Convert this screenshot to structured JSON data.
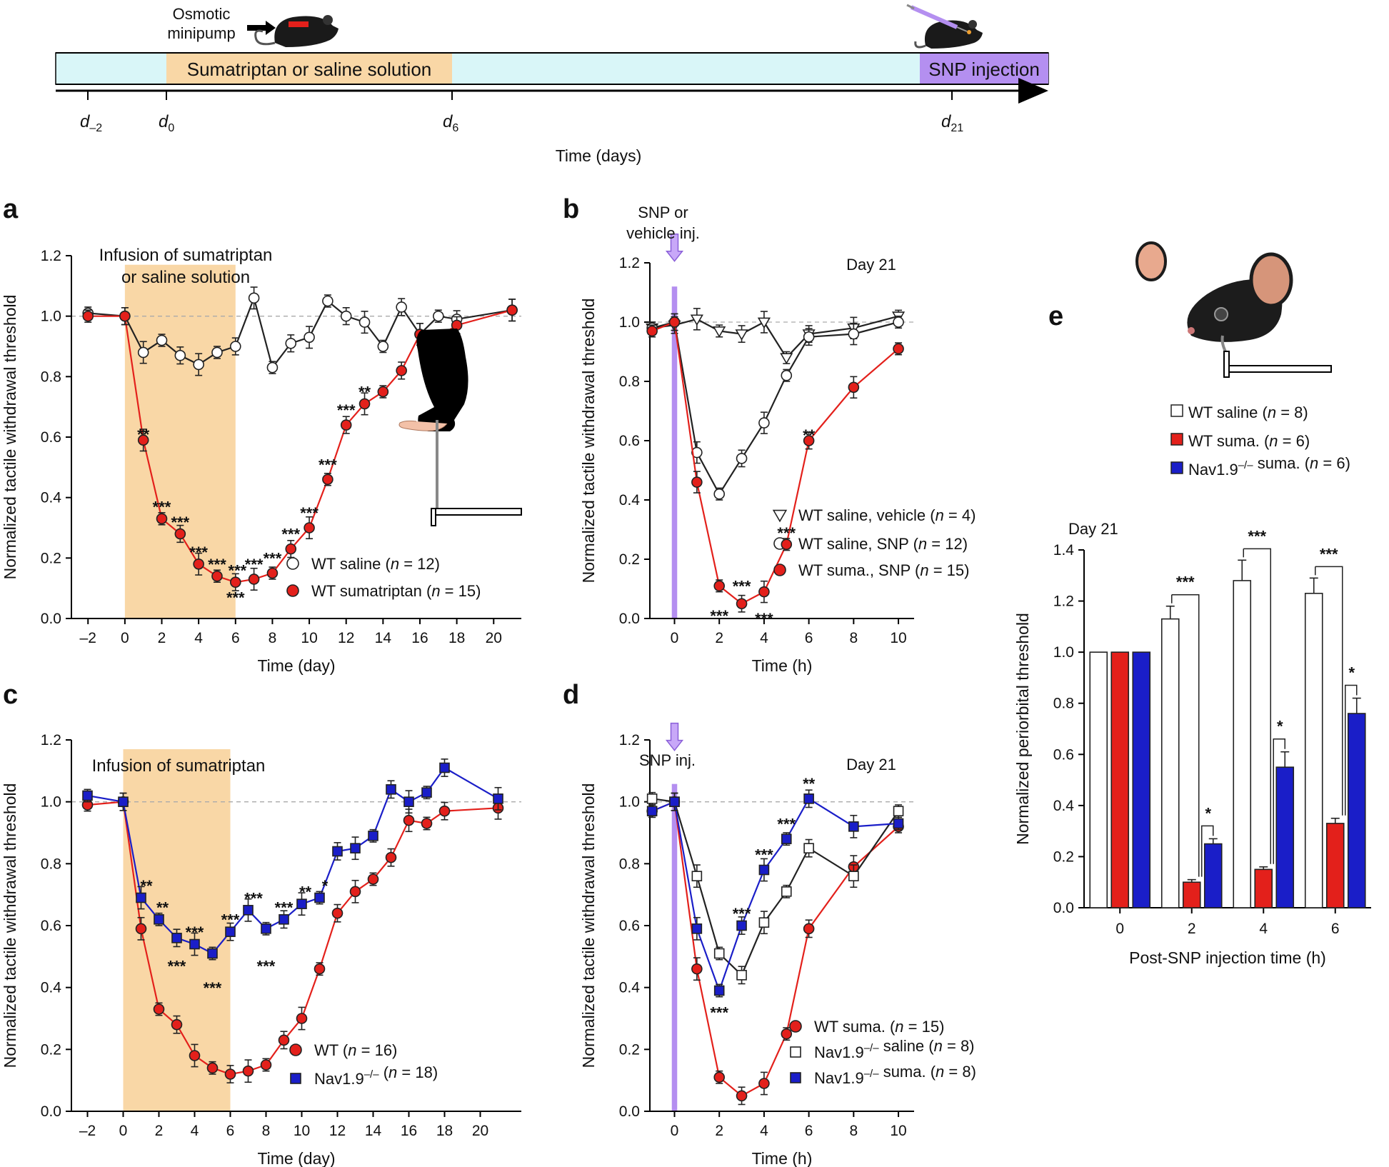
{
  "colors": {
    "wt_saline": "#ffffff",
    "wt_suma": "#e3201b",
    "nav": "#1a1ec8",
    "shade": "#f9d7a6",
    "inj": "#b48ff0",
    "strip": "#d9f6f8",
    "line": "#222222",
    "grid": "#aaaaaa"
  },
  "timeline": {
    "pump_label_1": "Osmotic",
    "pump_label_2": "minipump",
    "treatment_label": "Sumatriptan or saline solution",
    "snp_label": "SNP injection",
    "ticks": [
      {
        "d": "d",
        "s": "–2"
      },
      {
        "d": "d",
        "s": "0"
      },
      {
        "d": "d",
        "s": "6"
      },
      {
        "d": "d",
        "s": "21"
      }
    ],
    "xlabel": "Time (days)"
  },
  "chart_data": [
    {
      "id": "a",
      "type": "line",
      "letter": "a",
      "title": "Infusion of sumatriptan",
      "title2": "or saline solution",
      "xlabel": "Time (day)",
      "ylabel": "Normalized tactile withdrawal threshold",
      "xlim": [
        -2.9,
        21.5
      ],
      "ylim": [
        0,
        1.2
      ],
      "xticks": [
        -2,
        0,
        2,
        4,
        6,
        8,
        10,
        12,
        14,
        16,
        18,
        20
      ],
      "yticks": [
        0,
        0.2,
        0.4,
        0.6,
        0.8,
        1.0,
        1.2
      ],
      "ytick_labels": [
        "0.0",
        "0.2",
        "0.4",
        "0.6",
        "0.8",
        "1.0",
        "1.2"
      ],
      "shade": [
        0,
        6
      ],
      "series": [
        {
          "name": "WT saline",
          "n": "12",
          "marker": "circle",
          "fill": "#ffffff",
          "x": [
            -2,
            0,
            1,
            2,
            3,
            4,
            5,
            6,
            7,
            8,
            9,
            10,
            11,
            12,
            13,
            14,
            15,
            16,
            17,
            18,
            21
          ],
          "y": [
            1.01,
            1.0,
            0.88,
            0.92,
            0.87,
            0.84,
            0.88,
            0.9,
            1.06,
            0.83,
            0.91,
            0.93,
            1.05,
            1.0,
            0.98,
            0.9,
            1.03,
            0.94,
            1.0,
            0.99,
            1.02
          ]
        },
        {
          "name": "WT sumatriptan",
          "n": "15",
          "marker": "circle",
          "fill": "#e3201b",
          "x": [
            -2,
            0,
            1,
            2,
            3,
            4,
            5,
            6,
            7,
            8,
            9,
            10,
            11,
            12,
            13,
            14,
            15,
            16,
            17,
            18,
            21
          ],
          "y": [
            1.0,
            1.0,
            0.59,
            0.33,
            0.28,
            0.18,
            0.14,
            0.12,
            0.13,
            0.15,
            0.23,
            0.3,
            0.46,
            0.64,
            0.71,
            0.75,
            0.82,
            0.94,
            0.93,
            0.97,
            1.02
          ]
        }
      ],
      "stars": [
        {
          "x": 1,
          "y": 0.6,
          "t": "**"
        },
        {
          "x": 2,
          "y": 0.36,
          "t": "***"
        },
        {
          "x": 3,
          "y": 0.31,
          "t": "***"
        },
        {
          "x": 4,
          "y": 0.21,
          "t": "***"
        },
        {
          "x": 5,
          "y": 0.17,
          "t": "***"
        },
        {
          "x": 6.1,
          "y": 0.15,
          "t": "***"
        },
        {
          "x": 6,
          "y": 0.06,
          "t": "***"
        },
        {
          "x": 7,
          "y": 0.17,
          "t": "***"
        },
        {
          "x": 8,
          "y": 0.19,
          "t": "***"
        },
        {
          "x": 9,
          "y": 0.27,
          "t": "***"
        },
        {
          "x": 10,
          "y": 0.34,
          "t": "***"
        },
        {
          "x": 11,
          "y": 0.5,
          "t": "***"
        },
        {
          "x": 12,
          "y": 0.68,
          "t": "***"
        },
        {
          "x": 13,
          "y": 0.74,
          "t": "**"
        }
      ]
    },
    {
      "id": "b",
      "type": "line",
      "letter": "b",
      "title": "SNP or",
      "title2": "vehicle inj.",
      "daylabel": "Day 21",
      "xlabel": "Time (h)",
      "ylabel": "Normalized tactile withdrawal threshold",
      "xlim": [
        -1.1,
        10.7
      ],
      "ylim": [
        0,
        1.2
      ],
      "xticks": [
        0,
        2,
        4,
        6,
        8,
        10
      ],
      "yticks": [
        0,
        0.2,
        0.4,
        0.6,
        0.8,
        1.0,
        1.2
      ],
      "ytick_labels": [
        "0.0",
        "0.2",
        "0.4",
        "0.6",
        "0.8",
        "1.0",
        "1.2"
      ],
      "series": [
        {
          "name": "WT saline, vehicle",
          "n": "4",
          "marker": "triangle",
          "fill": "#ffffff",
          "x": [
            -1,
            0,
            1,
            2,
            3,
            4,
            5,
            6,
            8,
            10
          ],
          "y": [
            0.98,
            0.99,
            1.01,
            0.97,
            0.96,
            1.0,
            0.88,
            0.96,
            0.98,
            1.02
          ]
        },
        {
          "name": "WT saline, SNP",
          "n": "12",
          "marker": "circle",
          "fill": "#ffffff",
          "x": [
            -1,
            0,
            1,
            2,
            3,
            4,
            5,
            6,
            8,
            10
          ],
          "y": [
            0.98,
            1.0,
            0.56,
            0.42,
            0.54,
            0.66,
            0.82,
            0.95,
            0.96,
            1.0
          ]
        },
        {
          "name": "WT suma., SNP",
          "n": "15",
          "marker": "circle",
          "fill": "#e3201b",
          "x": [
            -1,
            0,
            1,
            2,
            3,
            4,
            5,
            6,
            8,
            10
          ],
          "y": [
            0.97,
            1.0,
            0.46,
            0.11,
            0.05,
            0.09,
            0.25,
            0.6,
            0.78,
            0.91
          ]
        }
      ],
      "stars": [
        {
          "x": 6,
          "y": 0.61,
          "t": "**"
        },
        {
          "x": 5,
          "y": 0.28,
          "t": "***"
        },
        {
          "x": 3,
          "y": 0.1,
          "t": "***"
        },
        {
          "x": 2,
          "y": 0.0,
          "t": "***"
        },
        {
          "x": 4,
          "y": -0.01,
          "t": "***"
        }
      ]
    },
    {
      "id": "c",
      "type": "line",
      "letter": "c",
      "title": "Infusion of sumatriptan",
      "xlabel": "Time (day)",
      "ylabel": "Normalized tactile withdrawal threshold",
      "xlim": [
        -2.9,
        22.3
      ],
      "ylim": [
        0,
        1.2
      ],
      "xticks": [
        -2,
        0,
        2,
        4,
        6,
        8,
        10,
        12,
        14,
        16,
        18,
        20
      ],
      "yticks": [
        0,
        0.2,
        0.4,
        0.6,
        0.8,
        1.0,
        1.2
      ],
      "ytick_labels": [
        "0.0",
        "0.2",
        "0.4",
        "0.6",
        "0.8",
        "1.0",
        "1.2"
      ],
      "shade": [
        0,
        6
      ],
      "series": [
        {
          "name": "WT",
          "n": "16",
          "marker": "circle",
          "fill": "#e3201b",
          "x": [
            -2,
            0,
            1,
            2,
            3,
            4,
            5,
            6,
            7,
            8,
            9,
            10,
            11,
            12,
            13,
            14,
            15,
            16,
            17,
            18,
            21
          ],
          "y": [
            0.99,
            1.0,
            0.59,
            0.33,
            0.28,
            0.18,
            0.14,
            0.12,
            0.13,
            0.15,
            0.23,
            0.3,
            0.46,
            0.64,
            0.71,
            0.75,
            0.82,
            0.94,
            0.93,
            0.97,
            0.98
          ]
        },
        {
          "name": "Nav1.9",
          "sup": "–/–",
          "n": "18",
          "marker": "square",
          "fill": "#1a1ec8",
          "x": [
            -2,
            0,
            1,
            2,
            3,
            4,
            5,
            6,
            7,
            8,
            9,
            10,
            11,
            12,
            13,
            14,
            15,
            16,
            17,
            18,
            21
          ],
          "y": [
            1.02,
            1.0,
            0.69,
            0.62,
            0.56,
            0.54,
            0.51,
            0.58,
            0.65,
            0.59,
            0.62,
            0.67,
            0.69,
            0.84,
            0.85,
            0.89,
            1.04,
            1.0,
            1.03,
            1.11,
            1.01
          ]
        }
      ],
      "stars": [
        {
          "x": 1.3,
          "y": 0.72,
          "t": "**"
        },
        {
          "x": 2.2,
          "y": 0.65,
          "t": "**"
        },
        {
          "x": 3,
          "y": 0.46,
          "t": "***"
        },
        {
          "x": 4,
          "y": 0.57,
          "t": "***"
        },
        {
          "x": 5,
          "y": 0.39,
          "t": "***"
        },
        {
          "x": 6,
          "y": 0.61,
          "t": "***"
        },
        {
          "x": 7.3,
          "y": 0.68,
          "t": "***"
        },
        {
          "x": 8,
          "y": 0.46,
          "t": "***"
        },
        {
          "x": 9,
          "y": 0.65,
          "t": "***"
        },
        {
          "x": 10.2,
          "y": 0.7,
          "t": "**"
        },
        {
          "x": 11.3,
          "y": 0.72,
          "t": "*"
        }
      ]
    },
    {
      "id": "d",
      "type": "line",
      "letter": "d",
      "title": "SNP inj.",
      "daylabel": "Day 21",
      "xlabel": "Time (h)",
      "ylabel": "Normalized tactile withdrawal threshold",
      "xlim": [
        -1.1,
        10.7
      ],
      "ylim": [
        0,
        1.2
      ],
      "xticks": [
        0,
        2,
        4,
        6,
        8,
        10
      ],
      "yticks": [
        0,
        0.2,
        0.4,
        0.6,
        0.8,
        1.0,
        1.2
      ],
      "ytick_labels": [
        "0.0",
        "0.2",
        "0.4",
        "0.6",
        "0.8",
        "1.0",
        "1.2"
      ],
      "series": [
        {
          "name": "WT suma.",
          "n": "15",
          "marker": "circle",
          "fill": "#e3201b",
          "x": [
            -1,
            0,
            1,
            2,
            3,
            4,
            5,
            6,
            8,
            10
          ],
          "y": [
            0.97,
            1.0,
            0.46,
            0.11,
            0.05,
            0.09,
            0.25,
            0.59,
            0.79,
            0.92
          ]
        },
        {
          "name": "Nav1.9",
          "sup": "–/–",
          "suffix": "saline",
          "n": "8",
          "marker": "square",
          "fill": "#ffffff",
          "x": [
            -1,
            0,
            1,
            2,
            3,
            4,
            5,
            6,
            8,
            10
          ],
          "y": [
            1.01,
            1.0,
            0.76,
            0.51,
            0.44,
            0.61,
            0.71,
            0.85,
            0.76,
            0.97
          ]
        },
        {
          "name": "Nav1.9",
          "sup": "–/–",
          "suffix": "suma.",
          "n": "8",
          "marker": "square",
          "fill": "#1a1ec8",
          "x": [
            -1,
            0,
            1,
            2,
            3,
            4,
            5,
            6,
            8,
            10
          ],
          "y": [
            0.97,
            1.0,
            0.59,
            0.39,
            0.6,
            0.78,
            0.88,
            1.01,
            0.92,
            0.93
          ]
        }
      ],
      "stars": [
        {
          "x": 6,
          "y": 1.05,
          "t": "**"
        },
        {
          "x": 5,
          "y": 0.92,
          "t": "***"
        },
        {
          "x": 4,
          "y": 0.82,
          "t": "***"
        },
        {
          "x": 3,
          "y": 0.63,
          "t": "***"
        },
        {
          "x": 2,
          "y": 0.31,
          "t": "***"
        }
      ]
    },
    {
      "id": "e",
      "type": "bar",
      "letter": "e",
      "daylabel": "Day 21",
      "xlabel": "Post-SNP injection time (h)",
      "ylabel": "Normalized periorbital threshold",
      "ylim": [
        0,
        1.4
      ],
      "yticks": [
        0,
        0.2,
        0.4,
        0.6,
        0.8,
        1.0,
        1.2,
        1.4
      ],
      "ytick_labels": [
        "0.0",
        "0.2",
        "0.4",
        "0.6",
        "0.8",
        "1.0",
        "1.2",
        "1.4"
      ],
      "categories": [
        "0",
        "2",
        "4",
        "6"
      ],
      "series": [
        {
          "name": "WT saline",
          "n": "8",
          "fill": "#ffffff",
          "values": [
            1.0,
            1.13,
            1.28,
            1.23
          ],
          "err": [
            0,
            0.05,
            0.08,
            0.06
          ]
        },
        {
          "name": "WT suma.",
          "n": "6",
          "fill": "#e3201b",
          "values": [
            1.0,
            0.1,
            0.15,
            0.33
          ],
          "err": [
            0,
            0.01,
            0.01,
            0.02
          ]
        },
        {
          "name": "Nav1.9",
          "sup": "–/–",
          "suffix": "suma.",
          "n": "6",
          "fill": "#1a1ec8",
          "values": [
            1.0,
            0.25,
            0.55,
            0.76
          ],
          "err": [
            0,
            0.02,
            0.06,
            0.06
          ]
        }
      ],
      "stars": [
        "***",
        "*",
        "***",
        "*",
        "***",
        "*"
      ]
    }
  ]
}
